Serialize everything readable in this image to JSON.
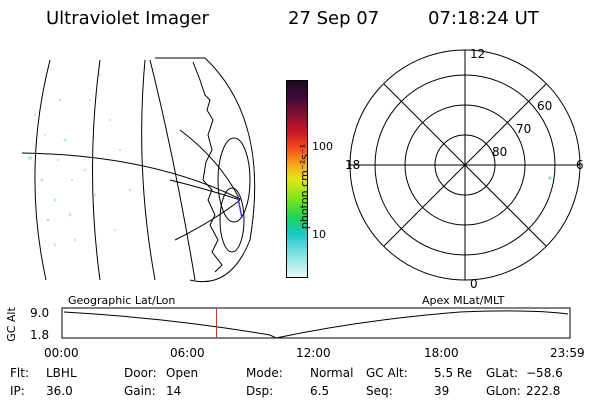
{
  "header": {
    "title": "Ultraviolet Imager",
    "date": "27 Sep 07",
    "time": "07:18:24 UT"
  },
  "colorbar": {
    "label": "photon cm⁻²s⁻¹",
    "ticks": [
      "100",
      "10"
    ]
  },
  "polar": {
    "mlt_labels": {
      "top": "12",
      "bottom": "0",
      "left": "18",
      "right": "6"
    },
    "lat_labels": [
      "60",
      "70",
      "80"
    ]
  },
  "timeline": {
    "ylabel": "GC Alt",
    "ymax": "9.0",
    "ymin": "1.8",
    "left_title": "Geographic Lat/Lon",
    "right_title": "Apex MLat/MLT",
    "xticks": [
      "00:00",
      "06:00",
      "12:00",
      "18:00",
      "23:59"
    ],
    "marker_time_hours": 7.3
  },
  "info": {
    "row1": [
      {
        "label": "Flt:",
        "value": "LBHL"
      },
      {
        "label": "Door:",
        "value": "Open"
      },
      {
        "label": "Mode:",
        "value": "Normal"
      },
      {
        "label": "GC Alt:",
        "value": "5.5 Re"
      },
      {
        "label": "GLat:",
        "value": "−58.6"
      }
    ],
    "row2": [
      {
        "label": "IP:",
        "value": "36.0"
      },
      {
        "label": "Gain:",
        "value": "14"
      },
      {
        "label": "Dsp:",
        "value": "6.5"
      },
      {
        "label": "Seq:",
        "value": "39"
      },
      {
        "label": "GLon:",
        "value": "222.8"
      }
    ]
  }
}
